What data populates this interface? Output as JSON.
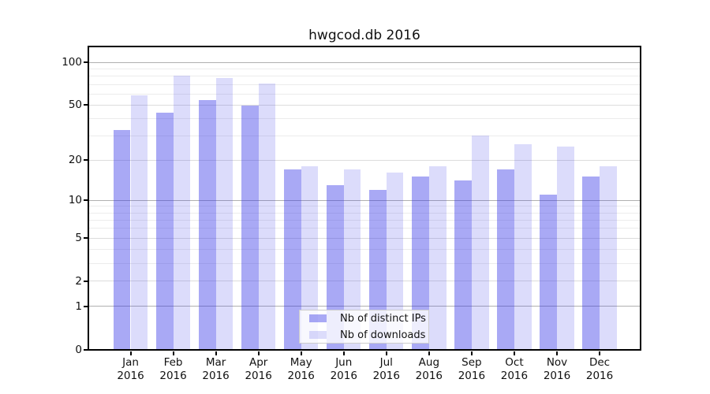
{
  "chart_data": {
    "type": "bar",
    "title": "hwgcod.db 2016",
    "categories": [
      "Jan",
      "Feb",
      "Mar",
      "Apr",
      "May",
      "Jun",
      "Jul",
      "Aug",
      "Sep",
      "Oct",
      "Nov",
      "Dec"
    ],
    "category_year": "2016",
    "series": [
      {
        "name": "Nb of distinct IPs",
        "color": "rgba(50,50,230,0.42)",
        "values": [
          33,
          44,
          54,
          49,
          17,
          13,
          12,
          15,
          14,
          17,
          11,
          15
        ]
      },
      {
        "name": "Nb of downloads",
        "color": "rgba(50,50,230,0.17)",
        "values": [
          58,
          80,
          77,
          71,
          18,
          17,
          16,
          18,
          30,
          26,
          25,
          18
        ]
      }
    ],
    "yscale": "log1p",
    "ylim": [
      0,
      128
    ],
    "yticks": [
      0,
      1,
      2,
      5,
      10,
      20,
      50,
      100
    ],
    "major_ticks": [
      1,
      10,
      100
    ],
    "minor_gridlines": [
      3,
      4,
      6,
      7,
      8,
      9,
      30,
      40,
      60,
      70,
      80,
      90
    ],
    "grid": true,
    "legend_position": "lower center",
    "colors": {
      "bar_distinct_ips": "rgba(50,50,230,0.42)",
      "bar_downloads": "rgba(50,50,230,0.17)",
      "grid_major": "#b0b0b0",
      "grid_labeled": "#dcdcdc",
      "grid_minor": "#ececec",
      "spine": "#000000",
      "text": "#111111",
      "legend_border": "#cccccc"
    }
  }
}
